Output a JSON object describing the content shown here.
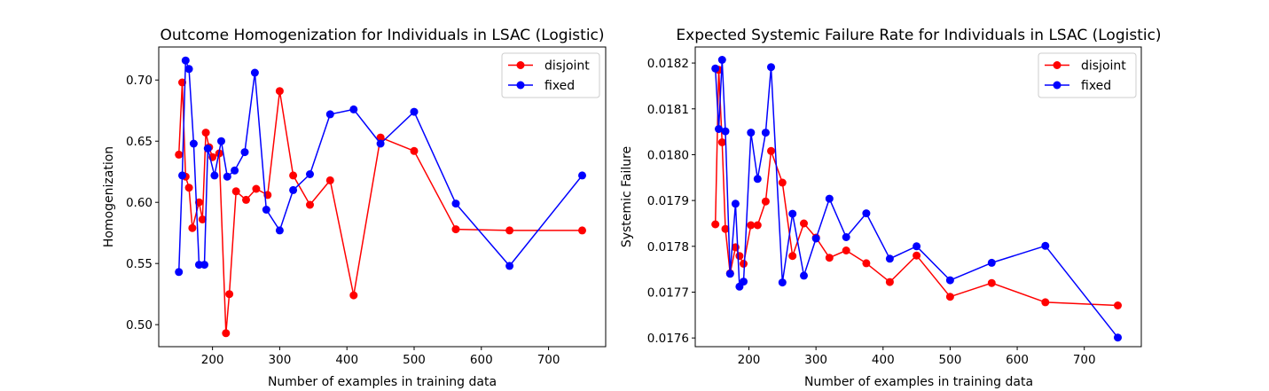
{
  "chart_data": [
    {
      "type": "line",
      "title": "Outcome Homogenization for Individuals in LSAC (Logistic)",
      "xlabel": "Number of examples in training data",
      "ylabel": "Homogenization",
      "xlim": [
        120,
        785
      ],
      "ylim": [
        0.482,
        0.727
      ],
      "xticks": [
        200,
        300,
        400,
        500,
        600,
        700
      ],
      "yticks": [
        0.5,
        0.55,
        0.6,
        0.65,
        0.7
      ],
      "ytick_labels": [
        "0.50",
        "0.55",
        "0.60",
        "0.65",
        "0.70"
      ],
      "legend_position": "top-right",
      "series": [
        {
          "name": "disjoint",
          "color": "#ff0000",
          "x": [
            150,
            155,
            160,
            165,
            170,
            180,
            185,
            190,
            195,
            200,
            210,
            220,
            225,
            235,
            250,
            265,
            282,
            300,
            320,
            345,
            375,
            410,
            450,
            500,
            562,
            642,
            750
          ],
          "y": [
            0.639,
            0.698,
            0.621,
            0.612,
            0.579,
            0.6,
            0.586,
            0.657,
            0.645,
            0.637,
            0.64,
            0.493,
            0.525,
            0.609,
            0.602,
            0.611,
            0.606,
            0.691,
            0.622,
            0.598,
            0.618,
            0.524,
            0.653,
            0.642,
            0.578,
            0.577,
            0.577
          ]
        },
        {
          "name": "fixed",
          "color": "#0000ff",
          "x": [
            150,
            155,
            160,
            165,
            172,
            180,
            188,
            193,
            203,
            213,
            222,
            233,
            248,
            263,
            280,
            300,
            320,
            345,
            375,
            410,
            450,
            500,
            562,
            642,
            750
          ],
          "y": [
            0.543,
            0.622,
            0.716,
            0.709,
            0.648,
            0.549,
            0.549,
            0.644,
            0.622,
            0.65,
            0.621,
            0.626,
            0.641,
            0.706,
            0.594,
            0.577,
            0.61,
            0.623,
            0.672,
            0.676,
            0.648,
            0.674,
            0.599,
            0.548,
            0.622
          ]
        }
      ]
    },
    {
      "type": "line",
      "title": "Expected Systemic Failure Rate for Individuals in LSAC (Logistic)",
      "xlabel": "Number of examples in training data",
      "ylabel": "Systemic Failure",
      "xlim": [
        120,
        785
      ],
      "ylim": [
        0.017581,
        0.018235
      ],
      "xticks": [
        200,
        300,
        400,
        500,
        600,
        700
      ],
      "yticks": [
        0.0176,
        0.0177,
        0.0178,
        0.0179,
        0.018,
        0.0181,
        0.0182
      ],
      "ytick_labels": [
        "0.0176",
        "0.0177",
        "0.0178",
        "0.0179",
        "0.0180",
        "0.0181",
        "0.0182"
      ],
      "legend_position": "top-right",
      "series": [
        {
          "name": "disjoint",
          "color": "#ff0000",
          "x": [
            150,
            155,
            160,
            165,
            172,
            180,
            186,
            192,
            203,
            213,
            225,
            233,
            250,
            265,
            282,
            300,
            320,
            345,
            375,
            410,
            450,
            500,
            562,
            642,
            750
          ],
          "y": [
            0.017848,
            0.018185,
            0.018027,
            0.017838,
            0.017741,
            0.017798,
            0.017779,
            0.017762,
            0.017846,
            0.017846,
            0.017898,
            0.018008,
            0.017939,
            0.017779,
            0.01785,
            0.017819,
            0.017775,
            0.017791,
            0.017763,
            0.017722,
            0.01778,
            0.01769,
            0.01772,
            0.017678,
            0.017671
          ]
        },
        {
          "name": "fixed",
          "color": "#0000ff",
          "x": [
            150,
            155,
            160,
            165,
            172,
            180,
            186,
            192,
            203,
            213,
            225,
            233,
            250,
            265,
            282,
            300,
            320,
            345,
            375,
            410,
            450,
            500,
            562,
            642,
            750
          ],
          "y": [
            0.018188,
            0.018056,
            0.018207,
            0.018051,
            0.01774,
            0.017893,
            0.017712,
            0.017723,
            0.018048,
            0.017947,
            0.018048,
            0.018191,
            0.017721,
            0.017871,
            0.017736,
            0.017817,
            0.017904,
            0.01782,
            0.017872,
            0.017773,
            0.0178,
            0.017726,
            0.017764,
            0.017801,
            0.017601
          ]
        }
      ]
    }
  ]
}
